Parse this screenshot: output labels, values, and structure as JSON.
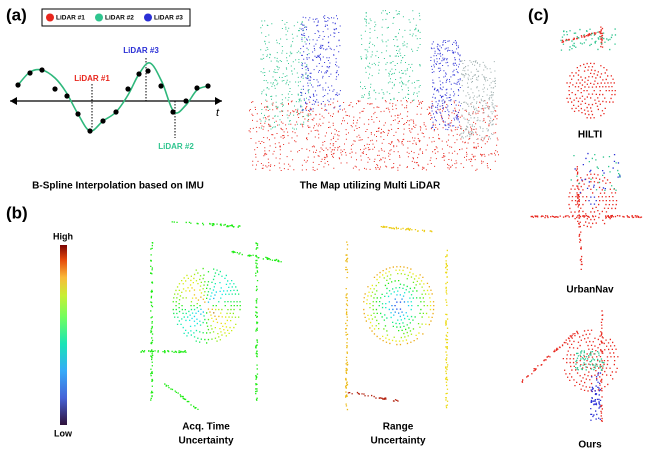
{
  "panels": {
    "a": {
      "label": "(a)",
      "legend": [
        "LiDAR #1",
        "LiDAR #2",
        "LiDAR #3"
      ],
      "plot_labels": {
        "lidar1": "LiDAR #1",
        "lidar2": "LiDAR #2",
        "lidar3": "LiDAR #3"
      },
      "axis_label": "t",
      "captions": [
        "B-Spline Interpolation based on IMU",
        "The Map utilizing Multi LiDAR"
      ]
    },
    "b": {
      "label": "(b)",
      "colorbar": {
        "high": "High",
        "low": "Low"
      },
      "captions": [
        [
          "Acq. Time",
          "Uncertainty"
        ],
        [
          "Range",
          "Uncertainty"
        ]
      ]
    },
    "c": {
      "label": "(c)",
      "captions": [
        "HILTI",
        "UrbanNav",
        "Ours"
      ]
    }
  }
}
